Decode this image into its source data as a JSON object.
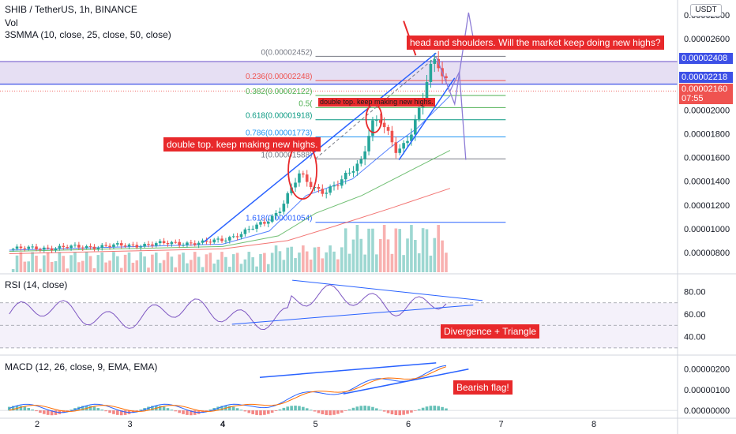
{
  "header": {
    "symbol": "SHIB / TetherUS, 1h, BINANCE",
    "vol": "Vol",
    "smma": "3SMMA (10, close, 25, close, 50, close)",
    "rsi": "RSI (14, close)",
    "macd": "MACD (12, 26, close, 9, EMA, EMA)"
  },
  "currency_button": "USDT",
  "annotations": {
    "head_shoulders": "head and shoulders. Will the market keep doing new highs?",
    "double_top_1": "double top. keep making new highs.",
    "double_top_2": "double top. keep making new highs.",
    "divergence": "Divergence + Triangle",
    "bearish_flag": "Bearish flag!"
  },
  "fib_labels": [
    "0(0.00002452)",
    "0.236(0.00002248)",
    "0.382(0.00002122)",
    "0.5(",
    "0.618(0.00001918)",
    "0.786(0.00001773)",
    "1(0.00001588)",
    "1.618(0.00001054)"
  ],
  "price_badges": {
    "upper": "0.00002408",
    "lower": "0.00002218",
    "current": "0.00002160",
    "countdown": "07:55"
  },
  "colors": {
    "up": "#26a69a",
    "down": "#ef5350",
    "trend": "#2962ff",
    "zone": "#d1c4e9",
    "annotation": "#e8292b"
  },
  "chart_data": [
    {
      "type": "candlestick",
      "title": "SHIB / TetherUS, 1h, BINANCE",
      "x_ticks": [
        "2",
        "3",
        "4",
        "5",
        "6",
        "7",
        "8"
      ],
      "y_ticks": [
        "0.00002800",
        "0.00002600",
        "0.00002408",
        "0.00002218",
        "0.00002160",
        "0.00002000",
        "0.00001800",
        "0.00001600",
        "0.00001400",
        "0.00001200",
        "0.00001000",
        "0.00000800"
      ],
      "ylim": [
        7.2e-06,
        2.84e-05
      ],
      "close_path": [
        [
          1.7,
          8.3e-06
        ],
        [
          2.2,
          8.4e-06
        ],
        [
          2.6,
          8.5e-06
        ],
        [
          3.0,
          8.6e-06
        ],
        [
          3.5,
          8.8e-06
        ],
        [
          3.8,
          8.8e-06
        ],
        [
          4.0,
          9.1e-06
        ],
        [
          4.2,
          9.6e-06
        ],
        [
          4.45,
          1.05e-05
        ],
        [
          4.6,
          1.15e-05
        ],
        [
          4.7,
          1.28e-05
        ],
        [
          4.82,
          1.45e-05
        ],
        [
          4.9,
          1.4e-05
        ],
        [
          5.0,
          1.34e-05
        ],
        [
          5.1,
          1.32e-05
        ],
        [
          5.25,
          1.38e-05
        ],
        [
          5.35,
          1.45e-05
        ],
        [
          5.5,
          1.58e-05
        ],
        [
          5.6,
          1.9e-05
        ],
        [
          5.7,
          1.92e-05
        ],
        [
          5.8,
          1.75e-05
        ],
        [
          5.88,
          1.63e-05
        ],
        [
          5.95,
          1.7e-05
        ],
        [
          6.05,
          1.86e-05
        ],
        [
          6.15,
          2.1e-05
        ],
        [
          6.22,
          2.3e-05
        ],
        [
          6.3,
          2.43e-05
        ],
        [
          6.37,
          2.25e-05
        ],
        [
          6.42,
          2.22e-05
        ],
        [
          6.45,
          2.16e-05
        ]
      ],
      "smma_lines": [
        {
          "name": "SMMA 10",
          "points": [
            [
              1.7,
              8.2e-06
            ],
            [
              4.0,
              8.7e-06
            ],
            [
              4.5,
              9.8e-06
            ],
            [
              4.9,
              1.28e-05
            ],
            [
              5.4,
              1.42e-05
            ],
            [
              5.8,
              1.68e-05
            ],
            [
              6.1,
              1.85e-05
            ],
            [
              6.45,
              2.12e-05
            ]
          ]
        },
        {
          "name": "SMMA 25",
          "points": [
            [
              1.7,
              8.1e-06
            ],
            [
              4.0,
              8.5e-06
            ],
            [
              4.6,
              9.4e-06
            ],
            [
              5.0,
              1.13e-05
            ],
            [
              5.5,
              1.28e-05
            ],
            [
              6.0,
              1.48e-05
            ],
            [
              6.45,
              1.66e-05
            ]
          ]
        },
        {
          "name": "SMMA 50",
          "points": [
            [
              1.7,
              7.9e-06
            ],
            [
              4.0,
              8.3e-06
            ],
            [
              4.7,
              9e-06
            ],
            [
              5.2,
              1.02e-05
            ],
            [
              5.8,
              1.17e-05
            ],
            [
              6.45,
              1.34e-05
            ]
          ]
        }
      ],
      "fib_levels": [
        {
          "ratio": "0",
          "value": 2.452e-05
        },
        {
          "ratio": "0.236",
          "value": 2.248e-05
        },
        {
          "ratio": "0.382",
          "value": 2.122e-05
        },
        {
          "ratio": "0.5",
          "value": 2.02e-05
        },
        {
          "ratio": "0.618",
          "value": 1.918e-05
        },
        {
          "ratio": "0.786",
          "value": 1.773e-05
        },
        {
          "ratio": "1",
          "value": 1.588e-05
        },
        {
          "ratio": "1.618",
          "value": 1.054e-05
        }
      ],
      "zone": [
        2.218e-05,
        2.408e-05
      ]
    },
    {
      "type": "line",
      "title": "RSI (14, close)",
      "y_ticks": [
        "80.00",
        "60.00",
        "40.00"
      ],
      "ylim": [
        25,
        95
      ],
      "bands": [
        70,
        50,
        30
      ]
    },
    {
      "type": "bar",
      "title": "MACD (12, 26, close, 9, EMA, EMA)",
      "y_ticks": [
        "0.00000200",
        "0.00000100",
        "0.00000000"
      ],
      "ylim": [
        -3e-07,
        2.6e-06
      ]
    }
  ]
}
